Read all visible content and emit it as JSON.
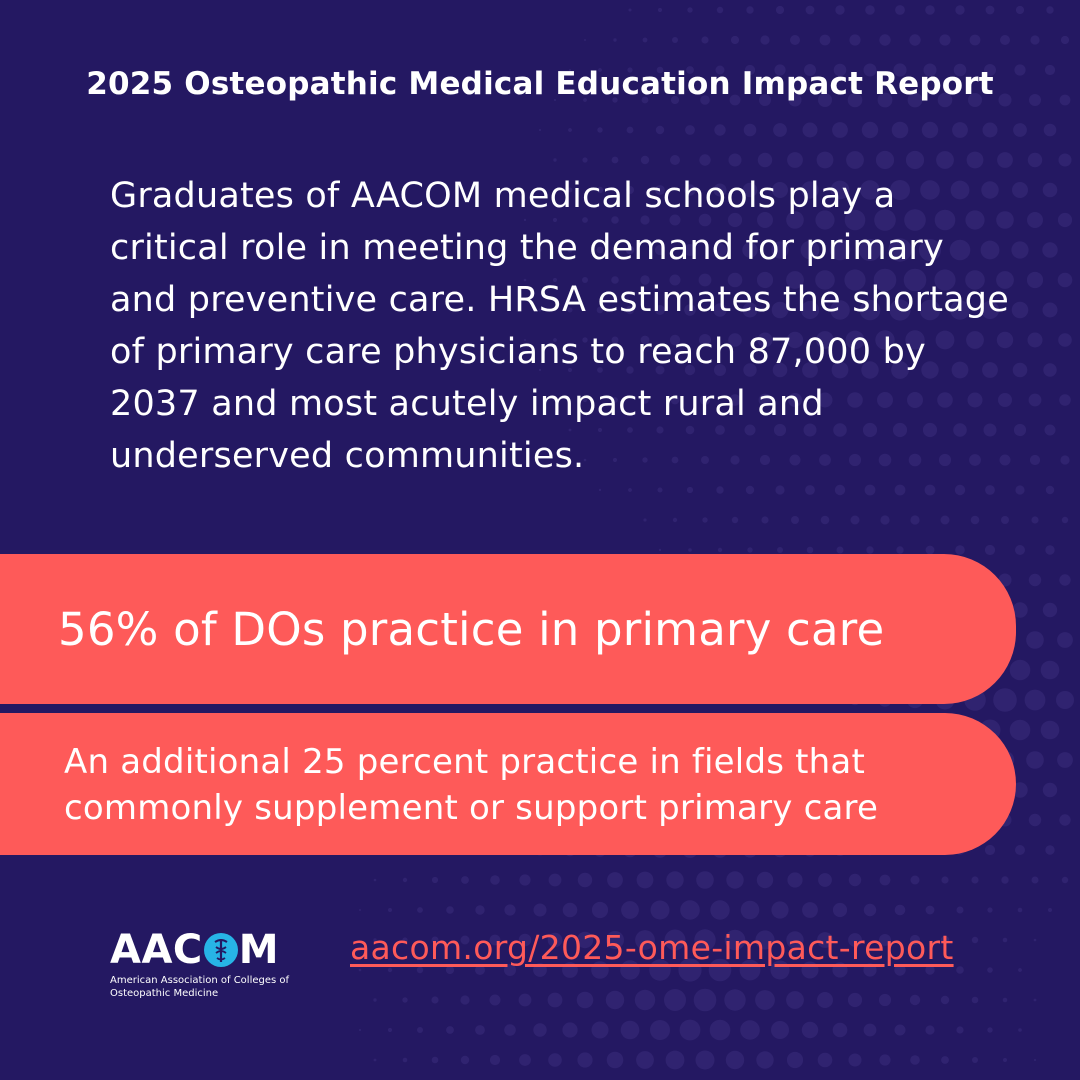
{
  "header": {
    "title": "2025 Osteopathic Medical Education Impact Report"
  },
  "main": {
    "paragraph": "Graduates of AACOM medical schools play a critical role in meeting the demand for primary and preventive care. HRSA estimates the shortage of primary care physicians to reach 87,000 by 2037 and most acutely impact rural and underserved communities."
  },
  "stats": {
    "primary": "56% of DOs practice in primary care",
    "secondary": "An additional 25 percent practice in fields that commonly supplement or support primary care"
  },
  "footer": {
    "logo_text_before": "AAC",
    "logo_text_after": "M",
    "logo_subtitle_line1": "American Association of Colleges of",
    "logo_subtitle_line2": "Osteopathic Medicine",
    "link_text": "aacom.org/2025-ome-impact-report"
  },
  "colors": {
    "background": "#241862",
    "accent": "#fe5a59",
    "logo_accent": "#27b4e6"
  }
}
